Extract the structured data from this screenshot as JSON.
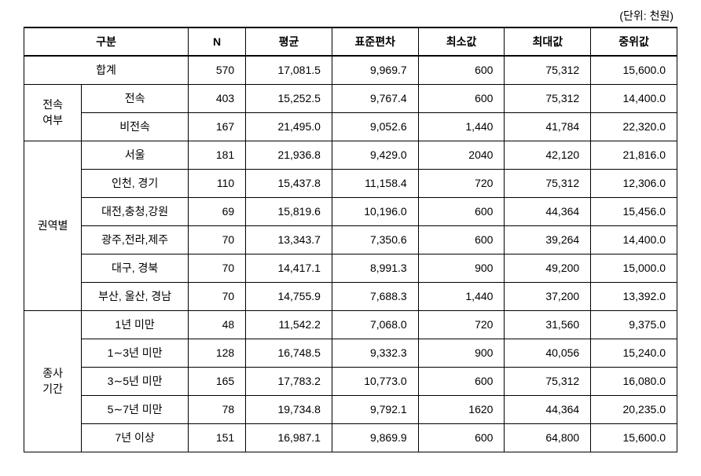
{
  "unit_label": "(단위: 천원)",
  "headers": {
    "category": "구분",
    "n": "N",
    "mean": "평균",
    "std": "표준편차",
    "min": "최소값",
    "max": "최대값",
    "median": "중위값"
  },
  "total": {
    "label": "합계",
    "n": "570",
    "mean": "17,081.5",
    "std": "9,969.7",
    "min": "600",
    "max": "75,312",
    "median": "15,600.0"
  },
  "groups": [
    {
      "group_label": "전속\n여부",
      "rows": [
        {
          "label": "전속",
          "n": "403",
          "mean": "15,252.5",
          "std": "9,767.4",
          "min": "600",
          "max": "75,312",
          "median": "14,400.0"
        },
        {
          "label": "비전속",
          "n": "167",
          "mean": "21,495.0",
          "std": "9,052.6",
          "min": "1,440",
          "max": "41,784",
          "median": "22,320.0"
        }
      ]
    },
    {
      "group_label": "권역별",
      "rows": [
        {
          "label": "서울",
          "n": "181",
          "mean": "21,936.8",
          "std": "9,429.0",
          "min": "2040",
          "max": "42,120",
          "median": "21,816.0"
        },
        {
          "label": "인천, 경기",
          "n": "110",
          "mean": "15,437.8",
          "std": "11,158.4",
          "min": "720",
          "max": "75,312",
          "median": "12,306.0"
        },
        {
          "label": "대전,충청,강원",
          "n": "69",
          "mean": "15,819.6",
          "std": "10,196.0",
          "min": "600",
          "max": "44,364",
          "median": "15,456.0"
        },
        {
          "label": "광주,전라,제주",
          "n": "70",
          "mean": "13,343.7",
          "std": "7,350.6",
          "min": "600",
          "max": "39,264",
          "median": "14,400.0"
        },
        {
          "label": "대구, 경북",
          "n": "70",
          "mean": "14,417.1",
          "std": "8,991.3",
          "min": "900",
          "max": "49,200",
          "median": "15,000.0"
        },
        {
          "label": "부산, 울산, 경남",
          "n": "70",
          "mean": "14,755.9",
          "std": "7,688.3",
          "min": "1,440",
          "max": "37,200",
          "median": "13,392.0"
        }
      ]
    },
    {
      "group_label": "종사\n기간",
      "rows": [
        {
          "label": "1년 미만",
          "n": "48",
          "mean": "11,542.2",
          "std": "7,068.0",
          "min": "720",
          "max": "31,560",
          "median": "9,375.0"
        },
        {
          "label": "1∼3년 미만",
          "n": "128",
          "mean": "16,748.5",
          "std": "9,332.3",
          "min": "900",
          "max": "40,056",
          "median": "15,240.0"
        },
        {
          "label": "3∼5년 미만",
          "n": "165",
          "mean": "17,783.2",
          "std": "10,773.0",
          "min": "600",
          "max": "75,312",
          "median": "16,080.0"
        },
        {
          "label": "5∼7년 미만",
          "n": "78",
          "mean": "19,734.8",
          "std": "9,792.1",
          "min": "1620",
          "max": "44,364",
          "median": "20,235.0"
        },
        {
          "label": "7년 이상",
          "n": "151",
          "mean": "16,987.1",
          "std": "9,869.9",
          "min": "600",
          "max": "64,800",
          "median": "15,600.0"
        }
      ]
    }
  ]
}
